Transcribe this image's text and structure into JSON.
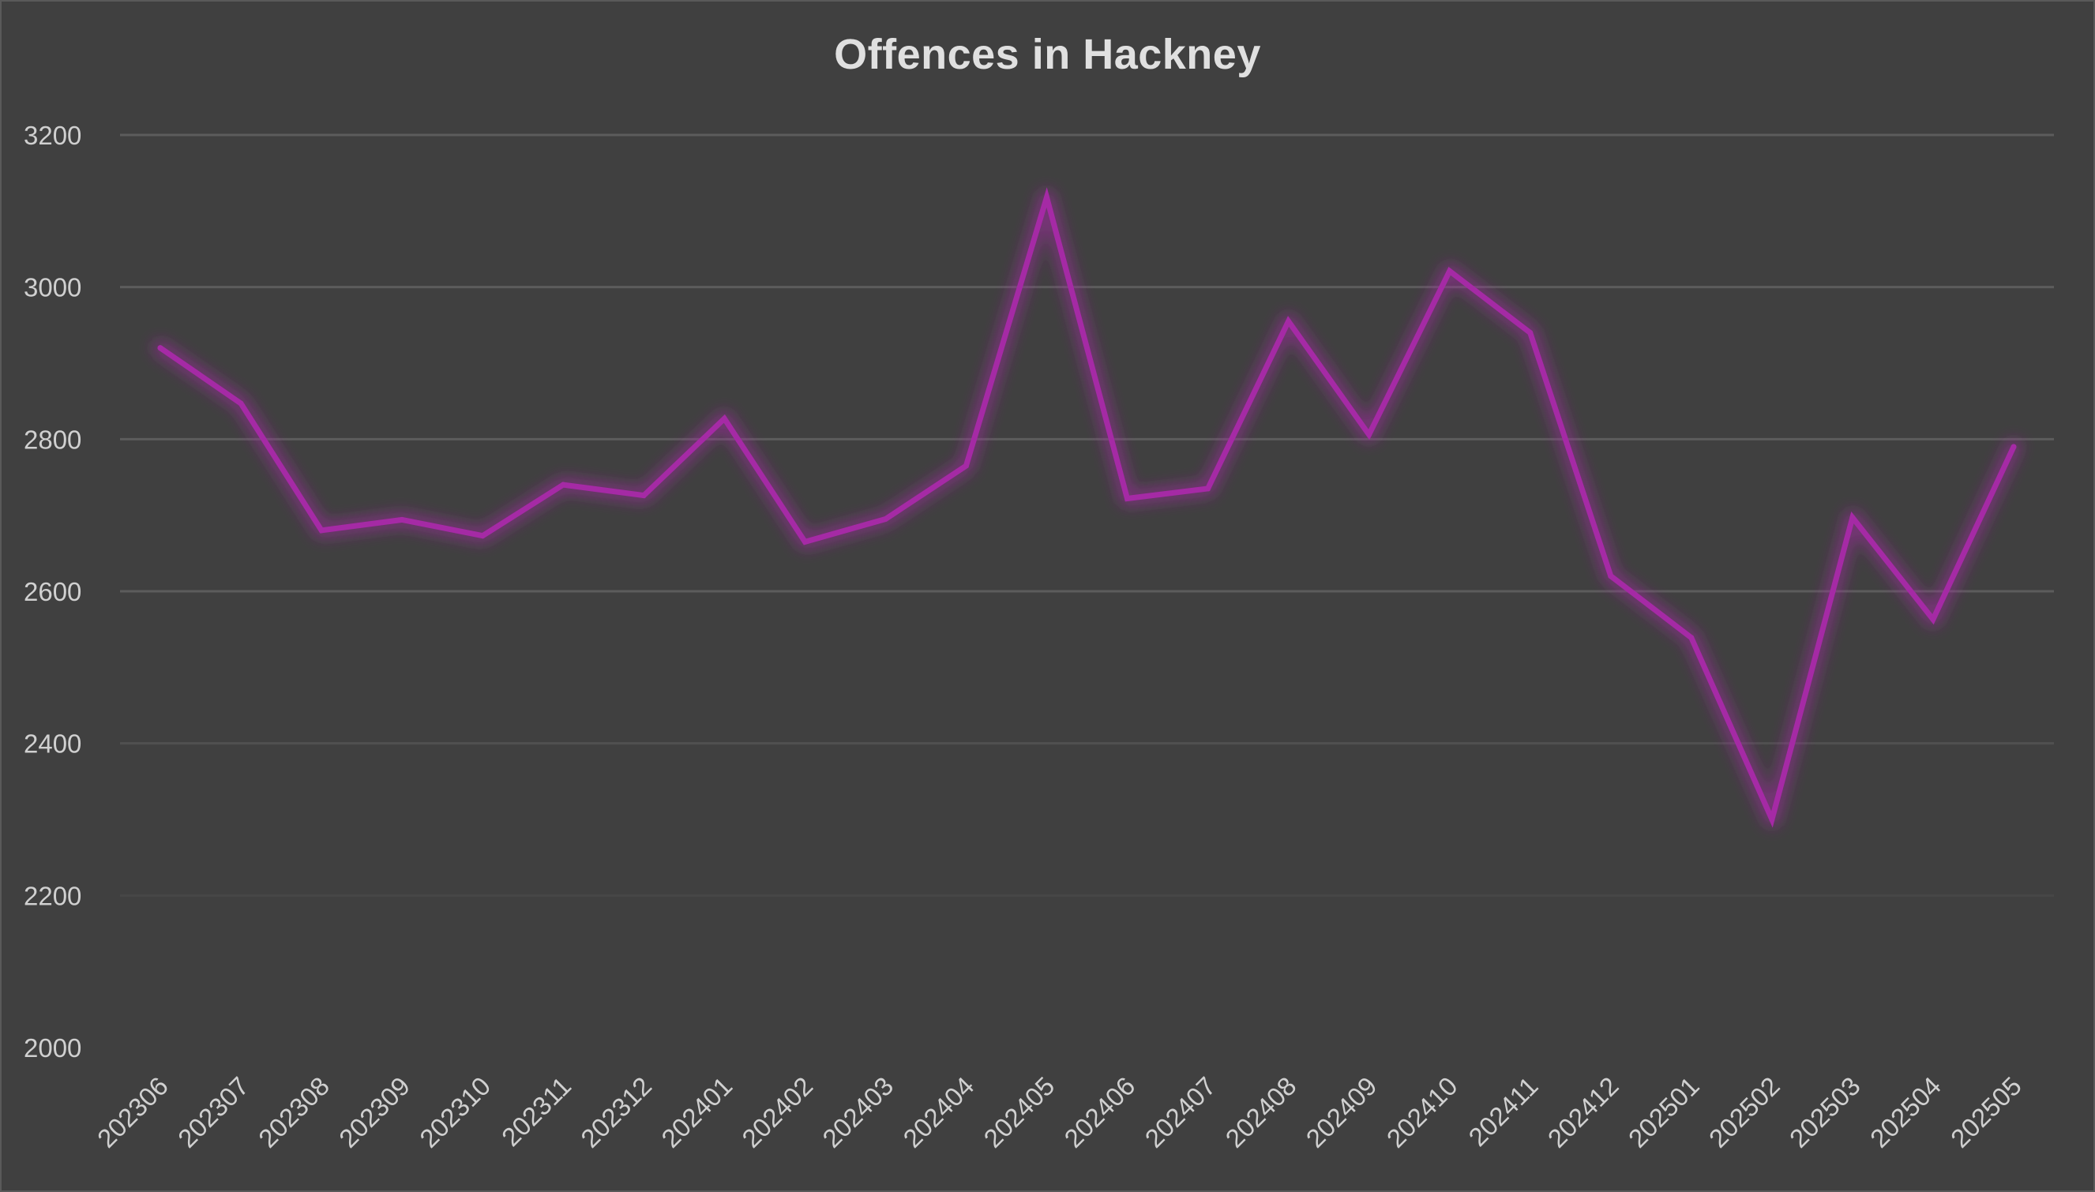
{
  "colors": {
    "background": "#404040",
    "gridline": "#5c5c5c",
    "text": "#d0d0d0",
    "series": "#a52aa5"
  },
  "chart_data": {
    "type": "line",
    "title": "Offences in Hackney",
    "xlabel": "",
    "ylabel": "",
    "ylim": [
      2000,
      3200
    ],
    "yticks": [
      2000,
      2200,
      2400,
      2600,
      2800,
      3000,
      3200
    ],
    "grid": true,
    "legend": "none",
    "categories": [
      "202306",
      "202307",
      "202308",
      "202309",
      "202310",
      "202311",
      "202312",
      "202401",
      "202402",
      "202403",
      "202404",
      "202405",
      "202406",
      "202407",
      "202408",
      "202409",
      "202410",
      "202411",
      "202412",
      "202501",
      "202502",
      "202503",
      "202504",
      "202505"
    ],
    "series": [
      {
        "values": [
          2920,
          2847,
          2680,
          2694,
          2673,
          2740,
          2726,
          2827,
          2665,
          2695,
          2765,
          3118,
          2722,
          2735,
          2955,
          2806,
          3021,
          2940,
          2620,
          2539,
          2300,
          2697,
          2563,
          2790
        ]
      }
    ]
  }
}
